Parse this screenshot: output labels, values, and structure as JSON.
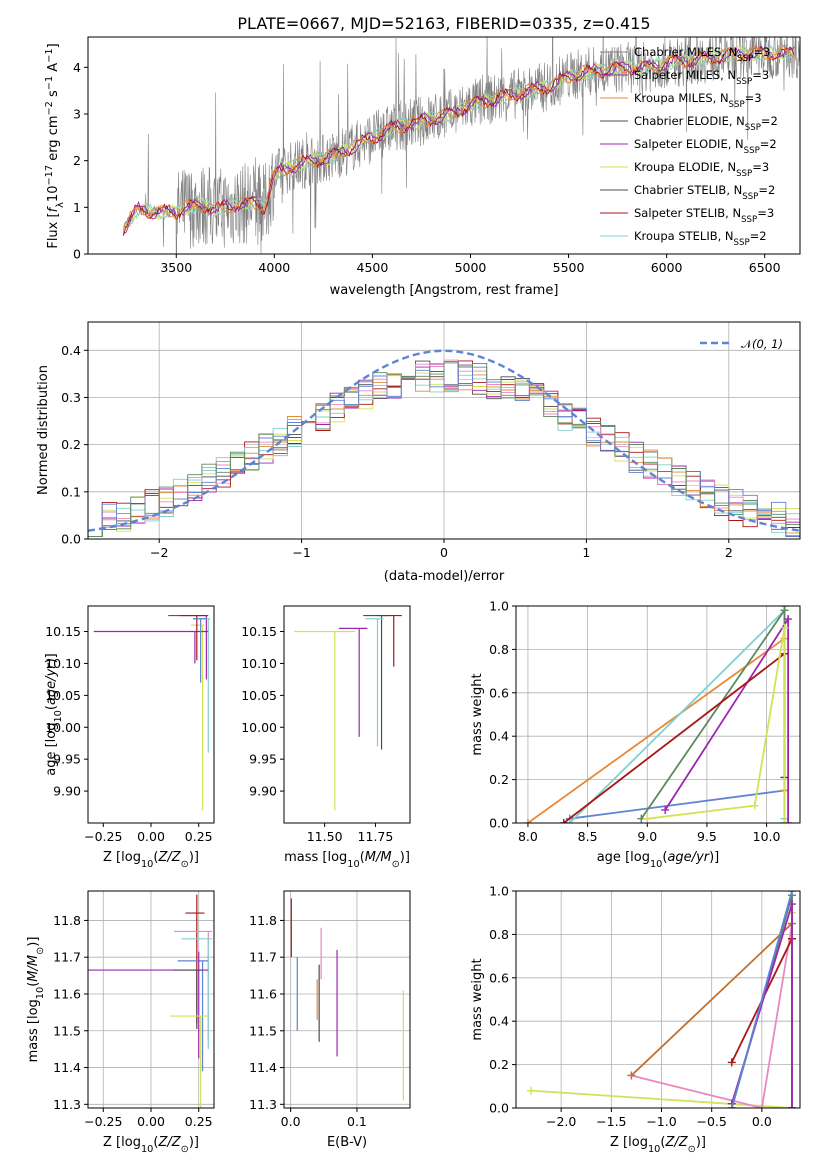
{
  "colors": {
    "gray": "#808080",
    "purple": "#9b27af",
    "yellow": "#d4e157",
    "dark": "#4d4d4d",
    "red": "#a81717",
    "cyan": "#80d0d0",
    "orange": "#e8893a",
    "green": "#5c8a5c",
    "blue": "#5e84d4",
    "pink": "#e88abf",
    "brown": "#c07030"
  },
  "chart_data": [
    {
      "type": "line",
      "title": "PLATE=0667, MJD=52163, FIBERID=0335, z=0.415",
      "xlabel": "wavelength [Angstrom, rest frame]",
      "ylabel": "Flux [f_λ 10^-17 erg cm^-2 s^-1 A^-1]",
      "xlim": [
        3050,
        6680
      ],
      "ylim": [
        0,
        4.65
      ],
      "xticks": [
        3500,
        4000,
        4500,
        5000,
        5500,
        6000,
        6500
      ],
      "yticks": [
        0,
        1,
        2,
        3,
        4
      ],
      "legend": [
        {
          "label": "Chabrier MILES, N_SSP=3",
          "color": "gray"
        },
        {
          "label": "Salpeter MILES, N_SSP=3",
          "color": "purple"
        },
        {
          "label": "Kroupa MILES, N_SSP=3",
          "color": "orange"
        },
        {
          "label": "Chabrier ELODIE, N_SSP=2",
          "color": "dark"
        },
        {
          "label": "Salpeter ELODIE, N_SSP=2",
          "color": "purple"
        },
        {
          "label": "Kroupa ELODIE, N_SSP=3",
          "color": "yellow"
        },
        {
          "label": "Chabrier STELIB, N_SSP=2",
          "color": "dark"
        },
        {
          "label": "Salpeter STELIB, N_SSP=3",
          "color": "red"
        },
        {
          "label": "Kroupa STELIB, N_SSP=2",
          "color": "cyan"
        }
      ],
      "legend_placement": "upper-right",
      "model_continuum": {
        "x": [
          3230,
          3300,
          3400,
          3500,
          3550,
          3650,
          3700,
          3800,
          3900,
          3950,
          4000,
          4100,
          4200,
          4300,
          4400,
          4500,
          4600,
          4700,
          4800,
          4900,
          5000,
          5100,
          5200,
          5300,
          5400,
          5500,
          5600,
          5700,
          5800,
          5900,
          6000,
          6100,
          6200,
          6300,
          6400,
          6500
        ],
        "y": [
          0.55,
          0.95,
          0.9,
          0.9,
          1.0,
          1.05,
          0.95,
          1.05,
          1.1,
          1.0,
          1.7,
          1.9,
          2.0,
          2.1,
          2.3,
          2.5,
          2.7,
          2.8,
          2.9,
          3.0,
          3.2,
          3.3,
          3.4,
          3.5,
          3.6,
          3.8,
          3.9,
          3.95,
          4.0,
          4.0,
          4.1,
          4.15,
          4.2,
          4.25,
          4.3,
          4.3
        ]
      }
    },
    {
      "type": "line",
      "xlabel": "(data-model)/error",
      "ylabel": "Normed distribution",
      "xlim": [
        -2.5,
        2.5
      ],
      "ylim": [
        0,
        0.46
      ],
      "xticks": [
        -2,
        -1,
        0,
        1,
        2
      ],
      "yticks": [
        0.0,
        0.1,
        0.2,
        0.3,
        0.4
      ],
      "legend": [
        {
          "label": "N(0,1)",
          "color": "blue",
          "style": "dashed"
        }
      ],
      "legend_placement": "upper-right",
      "grid": true
    },
    {
      "type": "scatter",
      "xlabel": "Z [log10(Z/Z_sun)]",
      "ylabel": "age [log10(age/yr)]",
      "xlim": [
        -0.33,
        0.33
      ],
      "ylim": [
        9.85,
        10.19
      ],
      "xticks": [
        -0.25,
        0.0,
        0.25
      ],
      "yticks": [
        9.9,
        9.95,
        10.0,
        10.05,
        10.1,
        10.15
      ],
      "grid": false,
      "points": [
        {
          "x": 0.29,
          "y": 10.175,
          "xerr": [
            0.2,
            0.01
          ],
          "yerr": [
            0.1,
            0.0
          ],
          "color": "purple"
        },
        {
          "x": 0.3,
          "y": 10.17,
          "xerr": [
            0.08,
            0.01
          ],
          "yerr": [
            0.21,
            0.0
          ],
          "color": "cyan"
        },
        {
          "x": 0.27,
          "y": 10.16,
          "xerr": [
            0.06,
            0.01
          ],
          "yerr": [
            0.29,
            0.0
          ],
          "color": "yellow"
        },
        {
          "x": 0.23,
          "y": 10.15,
          "xerr": [
            0.53,
            0.07
          ],
          "yerr": [
            0.05,
            0.0
          ],
          "color": "purple"
        },
        {
          "x": 0.24,
          "y": 10.175,
          "xerr": [
            0.09,
            0.05
          ],
          "yerr": [
            0.07,
            0.0
          ],
          "color": "red"
        },
        {
          "x": 0.26,
          "y": 10.17,
          "xerr": [
            0.04,
            0.03
          ],
          "yerr": [
            0.1,
            0.0
          ],
          "color": "blue"
        }
      ]
    },
    {
      "type": "scatter",
      "xlabel": "mass [log10(M/M_sun)]",
      "xlim": [
        11.3,
        11.92
      ],
      "ylim": [
        9.85,
        10.19
      ],
      "xticks": [
        11.5,
        11.75
      ],
      "yticks": [
        9.9,
        9.95,
        10.0,
        10.05,
        10.1,
        10.15
      ],
      "grid": false,
      "points": [
        {
          "x": 11.55,
          "y": 10.15,
          "xerr": [
            0.2,
            0.1
          ],
          "yerr": [
            0.28,
            0.0
          ],
          "color": "yellow"
        },
        {
          "x": 11.67,
          "y": 10.155,
          "xerr": [
            0.1,
            0.04
          ],
          "yerr": [
            0.17,
            0.0
          ],
          "color": "purple"
        },
        {
          "x": 11.78,
          "y": 10.175,
          "xerr": [
            0.09,
            0.04
          ],
          "yerr": [
            0.21,
            0.0
          ],
          "color": "dark"
        },
        {
          "x": 11.84,
          "y": 10.175,
          "xerr": [
            0.08,
            0.04
          ],
          "yerr": [
            0.08,
            0.0
          ],
          "color": "red"
        },
        {
          "x": 11.76,
          "y": 10.17,
          "xerr": [
            0.06,
            0.03
          ],
          "yerr": [
            0.2,
            0.0
          ],
          "color": "cyan"
        }
      ]
    },
    {
      "type": "line",
      "xlabel": "age [log10(age/yr)]",
      "ylabel": "mass weight",
      "xlim": [
        7.9,
        10.28
      ],
      "ylim": [
        0,
        1.0
      ],
      "xticks": [
        8.0,
        8.5,
        9.0,
        9.5,
        10.0
      ],
      "yticks": [
        0.0,
        0.2,
        0.4,
        0.6,
        0.8,
        1.0
      ],
      "grid": true,
      "series": [
        {
          "color": "blue",
          "x": [
            8.35,
            10.15,
            10.15
          ],
          "y": [
            0.02,
            0.15,
            1.0
          ]
        },
        {
          "color": "orange",
          "x": [
            8.0,
            10.15,
            10.15
          ],
          "y": [
            0.0,
            0.85,
            0.15
          ]
        },
        {
          "color": "cyan",
          "x": [
            8.35,
            10.15,
            10.15
          ],
          "y": [
            0.0,
            0.98,
            0.02
          ]
        },
        {
          "color": "green",
          "x": [
            8.95,
            10.15,
            10.15
          ],
          "y": [
            0.02,
            0.98,
            0.0
          ]
        },
        {
          "color": "purple",
          "x": [
            9.15,
            10.18,
            10.18
          ],
          "y": [
            0.06,
            0.94,
            0.0
          ]
        },
        {
          "color": "red",
          "x": [
            8.3,
            10.15,
            10.15
          ],
          "y": [
            0.0,
            0.78,
            0.21
          ]
        },
        {
          "color": "yellow",
          "x": [
            9.0,
            9.9,
            10.15,
            10.15
          ],
          "y": [
            0.02,
            0.08,
            0.9,
            0.0
          ]
        }
      ]
    },
    {
      "type": "scatter",
      "xlabel": "Z [log10(Z/Z_sun)]",
      "ylabel": "mass [log10(M/M_sun)]",
      "xlim": [
        -0.33,
        0.33
      ],
      "ylim": [
        11.29,
        11.88
      ],
      "xticks": [
        -0.25,
        0.0,
        0.25
      ],
      "yticks": [
        11.3,
        11.4,
        11.5,
        11.6,
        11.7,
        11.8
      ],
      "grid": true,
      "points": [
        {
          "x": 0.24,
          "y": 11.82,
          "xerr": [
            0.06,
            0.04
          ],
          "yerr": [
            0.3,
            0.05
          ],
          "color": "red"
        },
        {
          "x": 0.3,
          "y": 11.77,
          "xerr": [
            0.18,
            0.02
          ],
          "yerr": [
            0.3,
            0.0
          ],
          "color": "pink"
        },
        {
          "x": 0.3,
          "y": 11.75,
          "xerr": [
            0.14,
            0.02
          ],
          "yerr": [
            0.3,
            0.0
          ],
          "color": "cyan"
        },
        {
          "x": 0.27,
          "y": 11.69,
          "xerr": [
            0.13,
            0.03
          ],
          "yerr": [
            0.3,
            0.0
          ],
          "color": "blue"
        },
        {
          "x": 0.25,
          "y": 11.665,
          "xerr": [
            0.58,
            0.05
          ],
          "yerr": [
            0.24,
            0.05
          ],
          "color": "purple"
        },
        {
          "x": 0.24,
          "y": 11.665,
          "xerr": [
            0.12,
            0.03
          ],
          "yerr": [
            0.16,
            0.0
          ],
          "color": "dark"
        },
        {
          "x": 0.26,
          "y": 11.54,
          "xerr": [
            0.16,
            0.04
          ],
          "yerr": [
            0.25,
            0.0
          ],
          "color": "yellow"
        }
      ]
    },
    {
      "type": "scatter",
      "xlabel": "E(B-V)",
      "xlim": [
        -0.01,
        0.18
      ],
      "ylim": [
        11.29,
        11.88
      ],
      "xticks": [
        0.0,
        0.1
      ],
      "yticks": [
        11.3,
        11.4,
        11.5,
        11.6,
        11.7,
        11.8
      ],
      "grid": true,
      "points": [
        {
          "x": 0.001,
          "y": 11.8,
          "yerr": [
            0.1,
            0.06
          ],
          "color": "red"
        },
        {
          "x": 0.01,
          "y": 11.6,
          "yerr": [
            0.1,
            0.1
          ],
          "color": "blue"
        },
        {
          "x": 0.04,
          "y": 11.58,
          "yerr": [
            0.05,
            0.06
          ],
          "color": "orange"
        },
        {
          "x": 0.043,
          "y": 11.58,
          "yerr": [
            0.11,
            0.1
          ],
          "color": "dark"
        },
        {
          "x": 0.046,
          "y": 11.68,
          "yerr": [
            0.04,
            0.1
          ],
          "color": "pink"
        },
        {
          "x": 0.07,
          "y": 11.57,
          "yerr": [
            0.14,
            0.15
          ],
          "color": "purple"
        },
        {
          "x": 0.17,
          "y": 11.46,
          "yerr": [
            0.15,
            0.15
          ],
          "color": "yellow"
        }
      ]
    },
    {
      "type": "line",
      "xlabel": "Z [log10(Z/Z_sun)]",
      "ylabel": "mass weight",
      "xlim": [
        -2.45,
        0.38
      ],
      "ylim": [
        0,
        1.0
      ],
      "xticks": [
        -2.0,
        -1.5,
        -1.0,
        -0.5,
        0.0
      ],
      "yticks": [
        0.0,
        0.2,
        0.4,
        0.6,
        0.8,
        1.0
      ],
      "grid": true,
      "series": [
        {
          "color": "yellow",
          "x": [
            -2.3,
            0.3,
            0.3
          ],
          "y": [
            0.08,
            0.0,
            0.9
          ]
        },
        {
          "color": "pink",
          "x": [
            -1.3,
            0.0,
            0.3
          ],
          "y": [
            0.15,
            0.0,
            0.85
          ]
        },
        {
          "color": "brown",
          "x": [
            -1.3,
            0.3,
            0.3
          ],
          "y": [
            0.15,
            0.85,
            0.0
          ]
        },
        {
          "color": "red",
          "x": [
            -0.3,
            0.3,
            0.3
          ],
          "y": [
            0.21,
            0.78,
            0.0
          ]
        },
        {
          "color": "cyan",
          "x": [
            -0.3,
            0.3,
            0.3
          ],
          "y": [
            0.0,
            0.98,
            0.0
          ]
        },
        {
          "color": "green",
          "x": [
            -0.3,
            0.3,
            0.3
          ],
          "y": [
            0.0,
            0.98,
            0.0
          ]
        },
        {
          "color": "purple",
          "x": [
            -0.3,
            0.3,
            0.3
          ],
          "y": [
            0.02,
            0.94,
            0.0
          ]
        },
        {
          "color": "blue",
          "x": [
            -0.3,
            0.3
          ],
          "y": [
            0.0,
            1.0
          ]
        }
      ]
    }
  ]
}
